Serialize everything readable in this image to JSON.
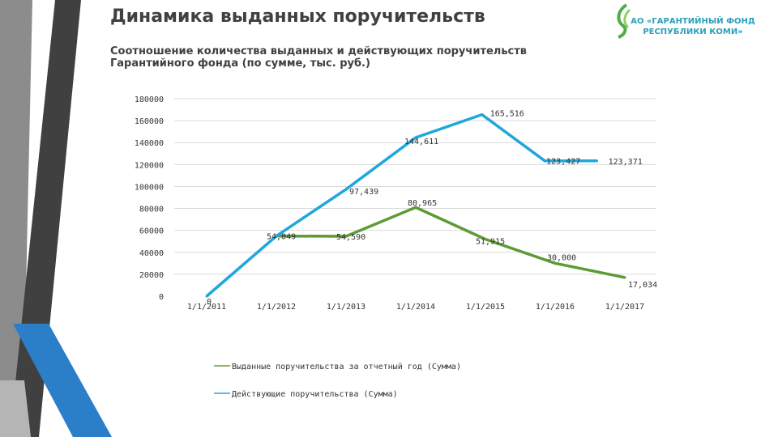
{
  "header": {
    "title": "Динамика выданных поручительств",
    "subtitle": "Соотношение количества выданных и действующих поручительств Гарантийного фонда (по сумме, тыс. руб.)",
    "org_line1": "АО «ГАРАНТИЙНЫЙ ФОНД",
    "org_line2": "РЕСПУБЛИКИ КОМИ»"
  },
  "colors": {
    "issued": "#5e9a35",
    "active": "#1fa7dc",
    "stripe_dark": "#404040",
    "stripe_blue": "#2b7fc9",
    "logo": "#4fae4a"
  },
  "chart_data": {
    "type": "line",
    "x": [
      "1/1/2011",
      "1/1/2012",
      "1/1/2013",
      "1/1/2014",
      "1/1/2015",
      "1/1/2016",
      "1/1/2017"
    ],
    "ylim": [
      0,
      180000
    ],
    "yticks": [
      "0",
      "20000",
      "40000",
      "60000",
      "80000",
      "100000",
      "120000",
      "140000",
      "160000",
      "180000"
    ],
    "grid": true,
    "legend_position": "bottom-left",
    "series": [
      {
        "name": "Выданные поручительства за отчетный год (Сумма)",
        "color": "#5e9a35",
        "values": [
          null,
          54849,
          54590,
          80965,
          51915,
          30000,
          17034
        ],
        "labels": [
          null,
          "54,849",
          "54,590",
          "80,965",
          "51,915",
          "30,000",
          "17,034"
        ]
      },
      {
        "name": "Действующие поручительства (Сумма)",
        "color": "#1fa7dc",
        "values": [
          0,
          54849,
          97439,
          144611,
          165516,
          123427,
          123371
        ],
        "point_x": [
          0,
          1,
          2,
          3,
          3.95,
          4.85,
          5.6
        ],
        "labels": [
          "0",
          null,
          "97,439",
          "144,611",
          "165,516",
          "123,427",
          "123,371"
        ]
      }
    ]
  }
}
